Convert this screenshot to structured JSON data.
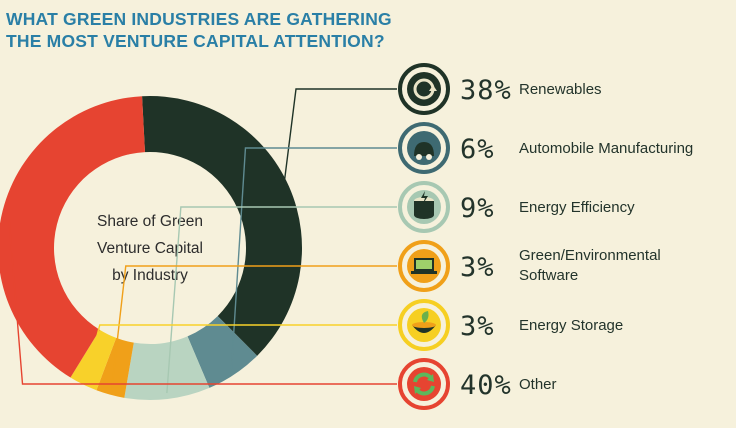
{
  "title": {
    "line1": "WHAT GREEN INDUSTRIES ARE GATHERING",
    "line2": "THE MOST VENTURE CAPITAL ATTENTION?"
  },
  "chart_data": {
    "type": "pie",
    "variant": "donut",
    "center_label": [
      "Share of Green",
      "Venture Capital",
      "by Industry"
    ],
    "slices": [
      {
        "label": "Renewables",
        "label_lines": [
          "Renewables"
        ],
        "value": 38,
        "display": "38%",
        "color": "#1f3327",
        "icon": "recycle-icon",
        "icon_bg": "#1f3327"
      },
      {
        "label": "Automobile Manufacturing",
        "label_lines": [
          "Automobile Manufacturing"
        ],
        "value": 6,
        "display": "6%",
        "color": "#5f8b91",
        "icon": "car-plug-icon",
        "icon_bg": "#3e6a72"
      },
      {
        "label": "Energy Efficiency",
        "label_lines": [
          "Energy Efficiency"
        ],
        "value": 9,
        "display": "9%",
        "color": "#b9d4c1",
        "icon": "battery-bolt-icon",
        "icon_bg": "#a7c8b2"
      },
      {
        "label": "Green/Environmental Software",
        "label_lines": [
          "Green/Environmental",
          "Software"
        ],
        "value": 3,
        "display": "3%",
        "color": "#f0a019",
        "icon": "laptop-icon",
        "icon_bg": "#f0a019"
      },
      {
        "label": "Energy Storage",
        "label_lines": [
          "Energy Storage"
        ],
        "value": 3,
        "display": "3%",
        "color": "#f8d12a",
        "icon": "storage-bowl-icon",
        "icon_bg": "#f6cf22"
      },
      {
        "label": "Other",
        "label_lines": [
          "Other"
        ],
        "value": 40,
        "display": "40%",
        "color": "#e64431",
        "icon": "refresh-arrows-icon",
        "icon_bg": "#e64431"
      }
    ]
  }
}
